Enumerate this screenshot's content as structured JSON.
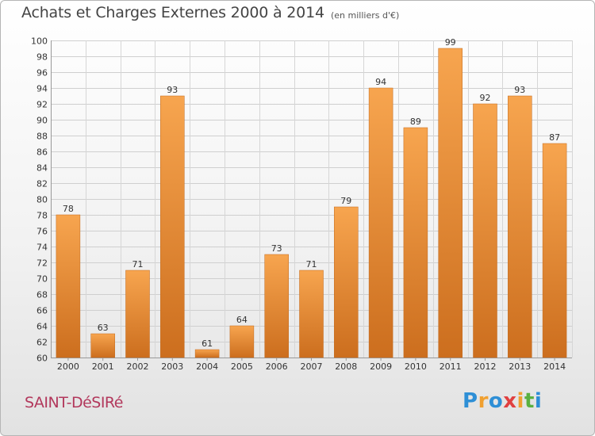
{
  "chart_data": {
    "type": "bar",
    "title": "Achats et Charges Externes 2000 à 2014",
    "subtitle": "(en milliers d'€)",
    "categories": [
      "2000",
      "2001",
      "2002",
      "2003",
      "2004",
      "2005",
      "2006",
      "2007",
      "2008",
      "2009",
      "2010",
      "2011",
      "2012",
      "2013",
      "2014"
    ],
    "values": [
      78,
      63,
      71,
      93,
      61,
      64,
      73,
      71,
      79,
      94,
      89,
      99,
      92,
      93,
      87
    ],
    "ylim": [
      60,
      100
    ],
    "ytick_step": 2,
    "xlabel": "",
    "ylabel": "",
    "grid": true,
    "bar_color_light": "#f7a54f",
    "bar_color_dark": "#cc6e1e"
  },
  "commune": "SAINT-DéSIRé",
  "logo": {
    "letters": [
      "P",
      "r",
      "o",
      "x",
      "i",
      "t",
      "i"
    ],
    "colors": [
      "#2e8fd6",
      "#f0a030",
      "#2e8fd6",
      "#e04040",
      "#f0a030",
      "#5ab040",
      "#2e8fd6"
    ]
  }
}
